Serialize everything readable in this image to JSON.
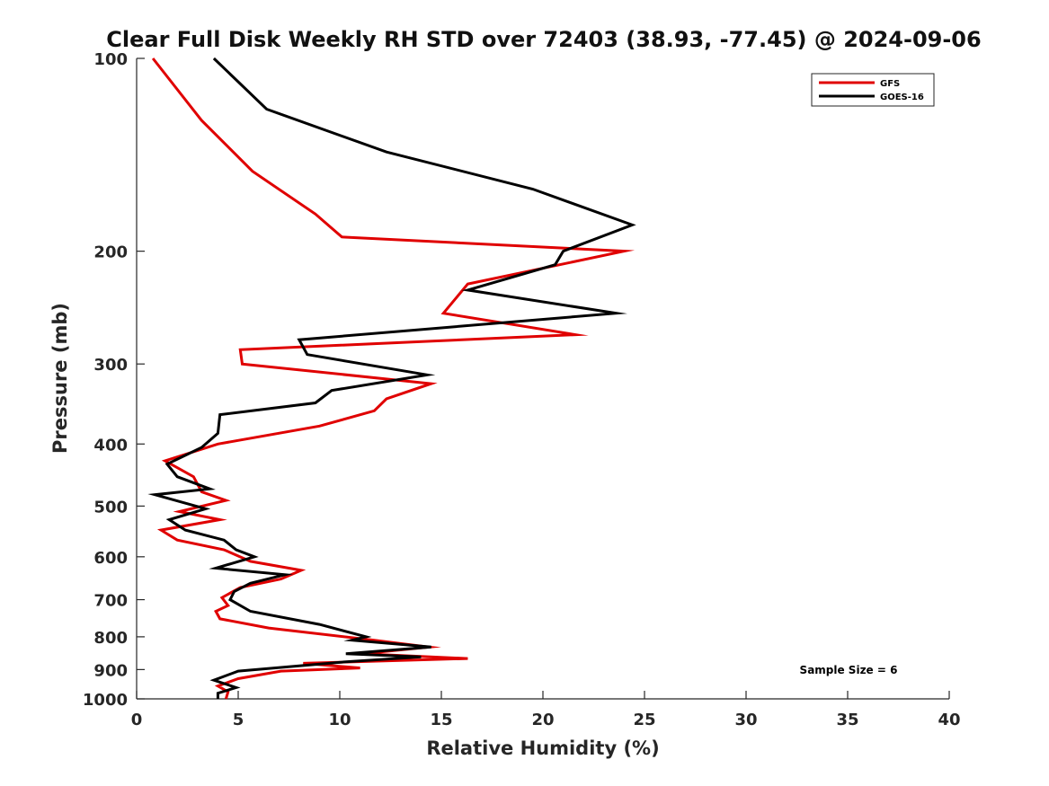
{
  "chart_data": {
    "type": "line",
    "title": "Clear Full Disk Weekly RH STD over 72403 (38.93, -77.45) @ 2024-09-06",
    "xlabel": "Relative Humidity (%)",
    "ylabel": "Pressure (mb)",
    "xlim": [
      0,
      40
    ],
    "ylim": [
      100,
      1000
    ],
    "yscale": "log",
    "y_reversed": true,
    "x_ticks": [
      0,
      5,
      10,
      15,
      20,
      25,
      30,
      35,
      40
    ],
    "x_tick_labels": [
      "0",
      "5",
      "10",
      "15",
      "20",
      "25",
      "30",
      "35",
      "40"
    ],
    "y_ticks": [
      100,
      200,
      300,
      400,
      500,
      600,
      700,
      800,
      900,
      1000
    ],
    "y_tick_labels": [
      "100",
      "200",
      "300",
      "400",
      "500",
      "600",
      "700",
      "800",
      "900",
      "1000"
    ],
    "grid": false,
    "legend_position": "top-right",
    "annotation": "Sample Size = 6",
    "series": [
      {
        "name": "GFS",
        "color": "#e00000",
        "points": [
          [
            0.8,
            100
          ],
          [
            3.2,
            125
          ],
          [
            5.7,
            150
          ],
          [
            8.8,
            175
          ],
          [
            10.1,
            190
          ],
          [
            24.0,
            200
          ],
          [
            16.3,
            225
          ],
          [
            15.1,
            250
          ],
          [
            21.6,
            270
          ],
          [
            5.1,
            285
          ],
          [
            5.2,
            300
          ],
          [
            14.5,
            322
          ],
          [
            12.3,
            340
          ],
          [
            11.7,
            355
          ],
          [
            9.0,
            375
          ],
          [
            4.0,
            400
          ],
          [
            1.4,
            425
          ],
          [
            2.8,
            450
          ],
          [
            3.2,
            475
          ],
          [
            4.4,
            490
          ],
          [
            2.1,
            510
          ],
          [
            4.1,
            525
          ],
          [
            1.2,
            545
          ],
          [
            2.0,
            565
          ],
          [
            4.3,
            585
          ],
          [
            5.6,
            610
          ],
          [
            8.1,
            630
          ],
          [
            7.1,
            650
          ],
          [
            5.1,
            670
          ],
          [
            4.2,
            695
          ],
          [
            4.5,
            715
          ],
          [
            3.9,
            730
          ],
          [
            4.1,
            750
          ],
          [
            6.5,
            775
          ],
          [
            11.7,
            810
          ],
          [
            14.4,
            830
          ],
          [
            11.1,
            850
          ],
          [
            16.3,
            865
          ],
          [
            8.2,
            880
          ],
          [
            11.0,
            895
          ],
          [
            7.1,
            905
          ],
          [
            5.0,
            930
          ],
          [
            4.0,
            955
          ],
          [
            4.5,
            975
          ],
          [
            4.4,
            1000
          ]
        ]
      },
      {
        "name": "GOES-16",
        "color": "#000000",
        "points": [
          [
            3.8,
            100
          ],
          [
            6.4,
            120
          ],
          [
            12.3,
            140
          ],
          [
            19.5,
            160
          ],
          [
            24.4,
            182
          ],
          [
            21.0,
            200
          ],
          [
            20.6,
            210
          ],
          [
            16.3,
            230
          ],
          [
            23.6,
            250
          ],
          [
            8.0,
            275
          ],
          [
            8.4,
            290
          ],
          [
            14.3,
            312
          ],
          [
            9.6,
            330
          ],
          [
            8.8,
            345
          ],
          [
            4.1,
            360
          ],
          [
            4.0,
            385
          ],
          [
            3.2,
            405
          ],
          [
            1.5,
            430
          ],
          [
            2.0,
            450
          ],
          [
            3.6,
            470
          ],
          [
            0.9,
            480
          ],
          [
            3.4,
            505
          ],
          [
            1.6,
            525
          ],
          [
            2.4,
            545
          ],
          [
            4.3,
            565
          ],
          [
            4.9,
            585
          ],
          [
            5.8,
            600
          ],
          [
            3.9,
            625
          ],
          [
            7.3,
            640
          ],
          [
            5.6,
            660
          ],
          [
            4.8,
            680
          ],
          [
            4.6,
            700
          ],
          [
            5.6,
            730
          ],
          [
            9.0,
            765
          ],
          [
            11.3,
            800
          ],
          [
            10.6,
            810
          ],
          [
            14.5,
            830
          ],
          [
            10.3,
            850
          ],
          [
            14.0,
            860
          ],
          [
            10.3,
            875
          ],
          [
            5.0,
            905
          ],
          [
            3.8,
            935
          ],
          [
            4.9,
            960
          ],
          [
            4.0,
            980
          ],
          [
            4.0,
            1000
          ]
        ]
      }
    ]
  }
}
